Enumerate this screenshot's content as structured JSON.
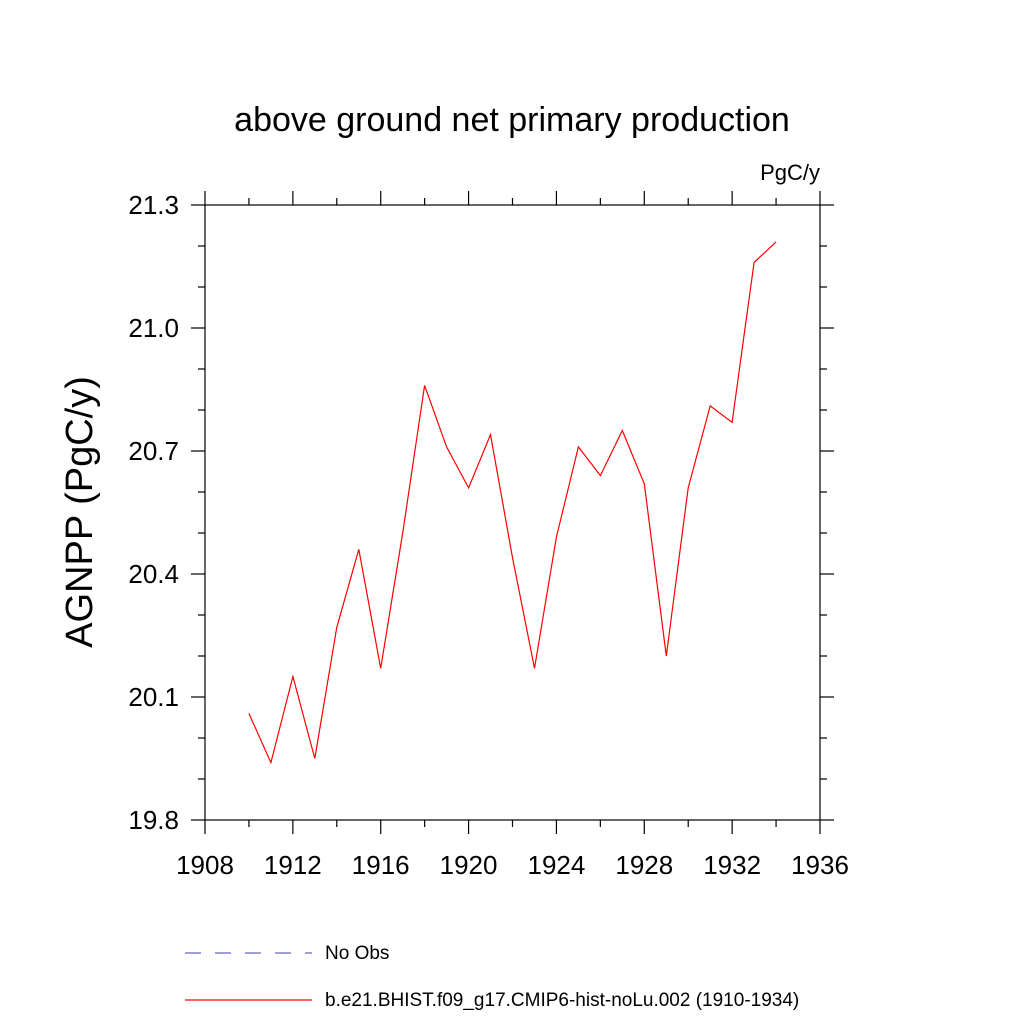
{
  "chart_data": {
    "type": "line",
    "title": "above ground net primary production",
    "units": "PgC/y",
    "xlabel": "",
    "ylabel": "AGNPP  (PgC/y)",
    "xlim": [
      1908,
      1936
    ],
    "ylim": [
      19.8,
      21.3
    ],
    "xticks": [
      1908,
      1912,
      1916,
      1920,
      1924,
      1928,
      1932,
      1936
    ],
    "yticks": [
      19.8,
      20.1,
      20.4,
      20.7,
      21.0,
      21.3
    ],
    "xtick_labels": [
      "1908",
      "1912",
      "1916",
      "1920",
      "1924",
      "1928",
      "1932",
      "1936"
    ],
    "ytick_labels": [
      "19.8",
      "20.1",
      "20.4",
      "20.7",
      "21.0",
      "21.3"
    ],
    "grid": false,
    "series": [
      {
        "name": "b.e21.BHIST.f09_g17.CMIP6-hist-noLu.002 (1910-1934)",
        "color": "#ff0000",
        "style": "solid",
        "x": [
          1910,
          1911,
          1912,
          1913,
          1914,
          1915,
          1916,
          1917,
          1918,
          1919,
          1920,
          1921,
          1922,
          1923,
          1924,
          1925,
          1926,
          1927,
          1928,
          1929,
          1930,
          1931,
          1932,
          1933,
          1934
        ],
        "y": [
          20.06,
          19.94,
          20.15,
          19.95,
          20.27,
          20.46,
          20.17,
          20.5,
          20.86,
          20.71,
          20.61,
          20.74,
          20.44,
          20.17,
          20.49,
          20.71,
          20.64,
          20.75,
          20.62,
          20.2,
          20.61,
          20.81,
          20.77,
          21.16,
          21.21
        ]
      }
    ],
    "legend": [
      {
        "label": "No Obs",
        "color": "#6666bb",
        "style": "dashed"
      },
      {
        "label": "b.e21.BHIST.f09_g17.CMIP6-hist-noLu.002 (1910-1934)",
        "color": "#ff0000",
        "style": "solid"
      }
    ],
    "legend_position": "bottom"
  }
}
